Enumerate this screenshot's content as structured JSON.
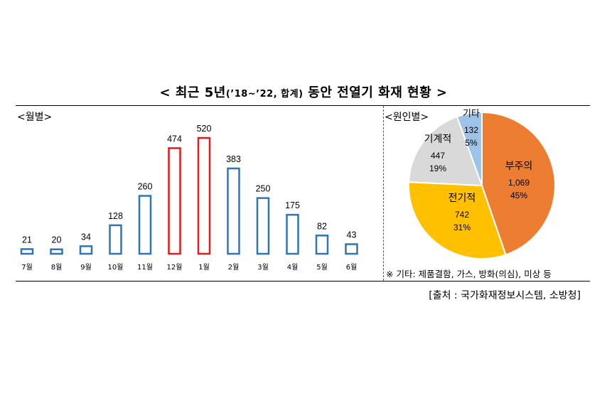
{
  "title": {
    "prefix": "< 최근 5년",
    "period": "(’18~’22, 합계)",
    "suffix": " 동안 전열기 화재 현황 >"
  },
  "monthly_label": "<월별>",
  "cause_label": "<원인별>",
  "note": "※ 기타: 제품결함, 가스, 방화(의심), 미상 등",
  "source": "[출처 : 국가화재정보시스템, 소방청]",
  "colors": {
    "bar_normal": "#2e75b6",
    "bar_highlight": "#e41a1c"
  },
  "chart_data": [
    {
      "type": "bar",
      "categories": [
        "7월",
        "8월",
        "9월",
        "10월",
        "11월",
        "12월",
        "1월",
        "2월",
        "3월",
        "4월",
        "5월",
        "6월"
      ],
      "values": [
        21,
        20,
        34,
        128,
        260,
        474,
        520,
        383,
        250,
        175,
        82,
        43
      ],
      "highlight": [
        "12월",
        "1월"
      ],
      "title": "",
      "xlabel": "",
      "ylabel": "",
      "ylim": [
        0,
        520
      ],
      "grid": false
    },
    {
      "type": "pie",
      "slices": [
        {
          "label": "부주의",
          "value": 1069,
          "value_text": "1,069",
          "percent": "45%",
          "color": "#ed7d31"
        },
        {
          "label": "전기적",
          "value": 742,
          "value_text": "742",
          "percent": "31%",
          "color": "#ffc000"
        },
        {
          "label": "기계적",
          "value": 447,
          "value_text": "447",
          "percent": "19%",
          "color": "#d9d9d9"
        },
        {
          "label": "기타",
          "value": 132,
          "value_text": "132",
          "percent": "5%",
          "color": "#9dc3e6"
        }
      ]
    }
  ]
}
